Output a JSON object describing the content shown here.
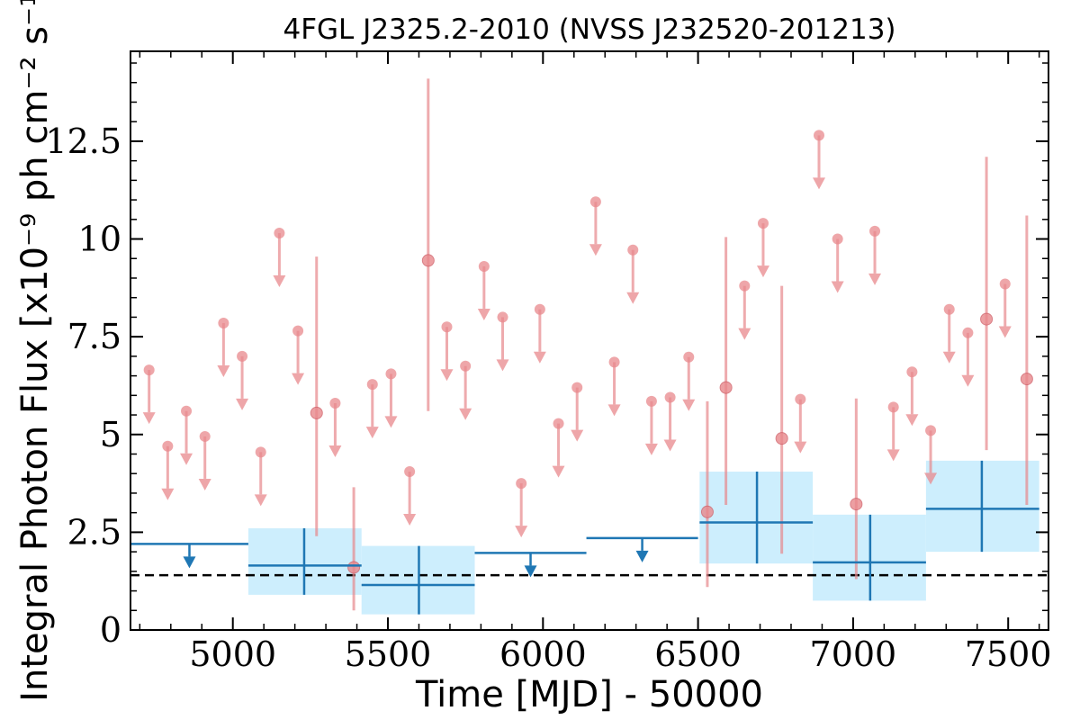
{
  "chart_data": {
    "type": "scatter",
    "title": "4FGL J2325.2-2010 (NVSS J232520-201213)",
    "xlabel": "Time [MJD] - 50000",
    "ylabel": "Integral Photon Flux [x10⁻⁹ ph cm⁻² s⁻¹]",
    "xlim": [
      4670,
      7630
    ],
    "ylim": [
      0,
      14.8
    ],
    "xticks": [
      5000,
      5500,
      6000,
      6500,
      7000,
      7500
    ],
    "xtick_labels": [
      "5000",
      "5500",
      "6000",
      "6500",
      "7000",
      "7500"
    ],
    "yticks": [
      0,
      2.5,
      5,
      7.5,
      10,
      12.5
    ],
    "ytick_labels": [
      "0",
      "2.5",
      "5",
      "7.5",
      "10",
      "12.5"
    ],
    "grid": false,
    "reference_line": {
      "y": 1.4,
      "style": "dashed",
      "color": "#000000"
    },
    "colors": {
      "short_bins": "#e8888c",
      "long_bins": "#1f77b4",
      "long_bins_band": "#cdeefd"
    },
    "long_bins_upper_limits": [
      {
        "x_start": 4670,
        "x_end": 5050,
        "ul": 2.2
      },
      {
        "x_start": 5780,
        "x_end": 6140,
        "ul": 1.97
      },
      {
        "x_start": 6140,
        "x_end": 6500,
        "ul": 2.35
      }
    ],
    "long_bins_detections": [
      {
        "x_start": 5050,
        "x_end": 5415,
        "x": 5230,
        "y": 1.65,
        "y_low": 0.9,
        "y_high": 2.6
      },
      {
        "x_start": 5415,
        "x_end": 5780,
        "x": 5600,
        "y": 1.15,
        "y_low": 0.4,
        "y_high": 2.15
      },
      {
        "x_start": 6505,
        "x_end": 6870,
        "x": 6690,
        "y": 2.75,
        "y_low": 1.7,
        "y_high": 4.05
      },
      {
        "x_start": 6870,
        "x_end": 7235,
        "x": 7055,
        "y": 1.73,
        "y_low": 0.75,
        "y_high": 2.95
      },
      {
        "x_start": 7235,
        "x_end": 7600,
        "x": 7415,
        "y": 3.1,
        "y_low": 2.0,
        "y_high": 4.33
      }
    ],
    "short_bins_upper_limits": [
      {
        "x": 4730,
        "ul": 6.65
      },
      {
        "x": 4790,
        "ul": 4.7
      },
      {
        "x": 4850,
        "ul": 5.6
      },
      {
        "x": 4910,
        "ul": 4.95
      },
      {
        "x": 4970,
        "ul": 7.85
      },
      {
        "x": 5030,
        "ul": 7.0
      },
      {
        "x": 5090,
        "ul": 4.55
      },
      {
        "x": 5150,
        "ul": 10.15
      },
      {
        "x": 5210,
        "ul": 7.65
      },
      {
        "x": 5330,
        "ul": 5.8
      },
      {
        "x": 5450,
        "ul": 6.28
      },
      {
        "x": 5510,
        "ul": 6.55
      },
      {
        "x": 5570,
        "ul": 4.05
      },
      {
        "x": 5690,
        "ul": 7.75
      },
      {
        "x": 5750,
        "ul": 6.75
      },
      {
        "x": 5810,
        "ul": 9.3
      },
      {
        "x": 5870,
        "ul": 8.0
      },
      {
        "x": 5930,
        "ul": 3.75
      },
      {
        "x": 5990,
        "ul": 8.2
      },
      {
        "x": 6050,
        "ul": 5.28
      },
      {
        "x": 6110,
        "ul": 6.2
      },
      {
        "x": 6170,
        "ul": 10.95
      },
      {
        "x": 6230,
        "ul": 6.85
      },
      {
        "x": 6290,
        "ul": 9.72
      },
      {
        "x": 6350,
        "ul": 5.85
      },
      {
        "x": 6410,
        "ul": 5.95
      },
      {
        "x": 6470,
        "ul": 6.98
      },
      {
        "x": 6650,
        "ul": 8.8
      },
      {
        "x": 6710,
        "ul": 10.4
      },
      {
        "x": 6830,
        "ul": 5.9
      },
      {
        "x": 6890,
        "ul": 12.65
      },
      {
        "x": 6950,
        "ul": 10.0
      },
      {
        "x": 7070,
        "ul": 10.2
      },
      {
        "x": 7130,
        "ul": 5.7
      },
      {
        "x": 7190,
        "ul": 6.6
      },
      {
        "x": 7250,
        "ul": 5.1
      },
      {
        "x": 7310,
        "ul": 8.2
      },
      {
        "x": 7370,
        "ul": 7.6
      },
      {
        "x": 7490,
        "ul": 8.85
      }
    ],
    "short_bins_detections": [
      {
        "x": 5270,
        "y": 5.55,
        "y_low": 2.4,
        "y_high": 9.55
      },
      {
        "x": 5390,
        "y": 1.6,
        "y_low": 0.5,
        "y_high": 3.65
      },
      {
        "x": 5630,
        "y": 9.45,
        "y_low": 5.6,
        "y_high": 14.1
      },
      {
        "x": 6530,
        "y": 3.02,
        "y_low": 1.1,
        "y_high": 5.85
      },
      {
        "x": 6590,
        "y": 6.2,
        "y_low": 3.2,
        "y_high": 10.05
      },
      {
        "x": 6770,
        "y": 4.9,
        "y_low": 1.95,
        "y_high": 8.8
      },
      {
        "x": 7010,
        "y": 3.22,
        "y_low": 1.3,
        "y_high": 5.92
      },
      {
        "x": 7430,
        "y": 7.95,
        "y_low": 4.6,
        "y_high": 12.1
      },
      {
        "x": 7560,
        "y": 6.42,
        "y_low": 3.2,
        "y_high": 10.6
      }
    ]
  }
}
